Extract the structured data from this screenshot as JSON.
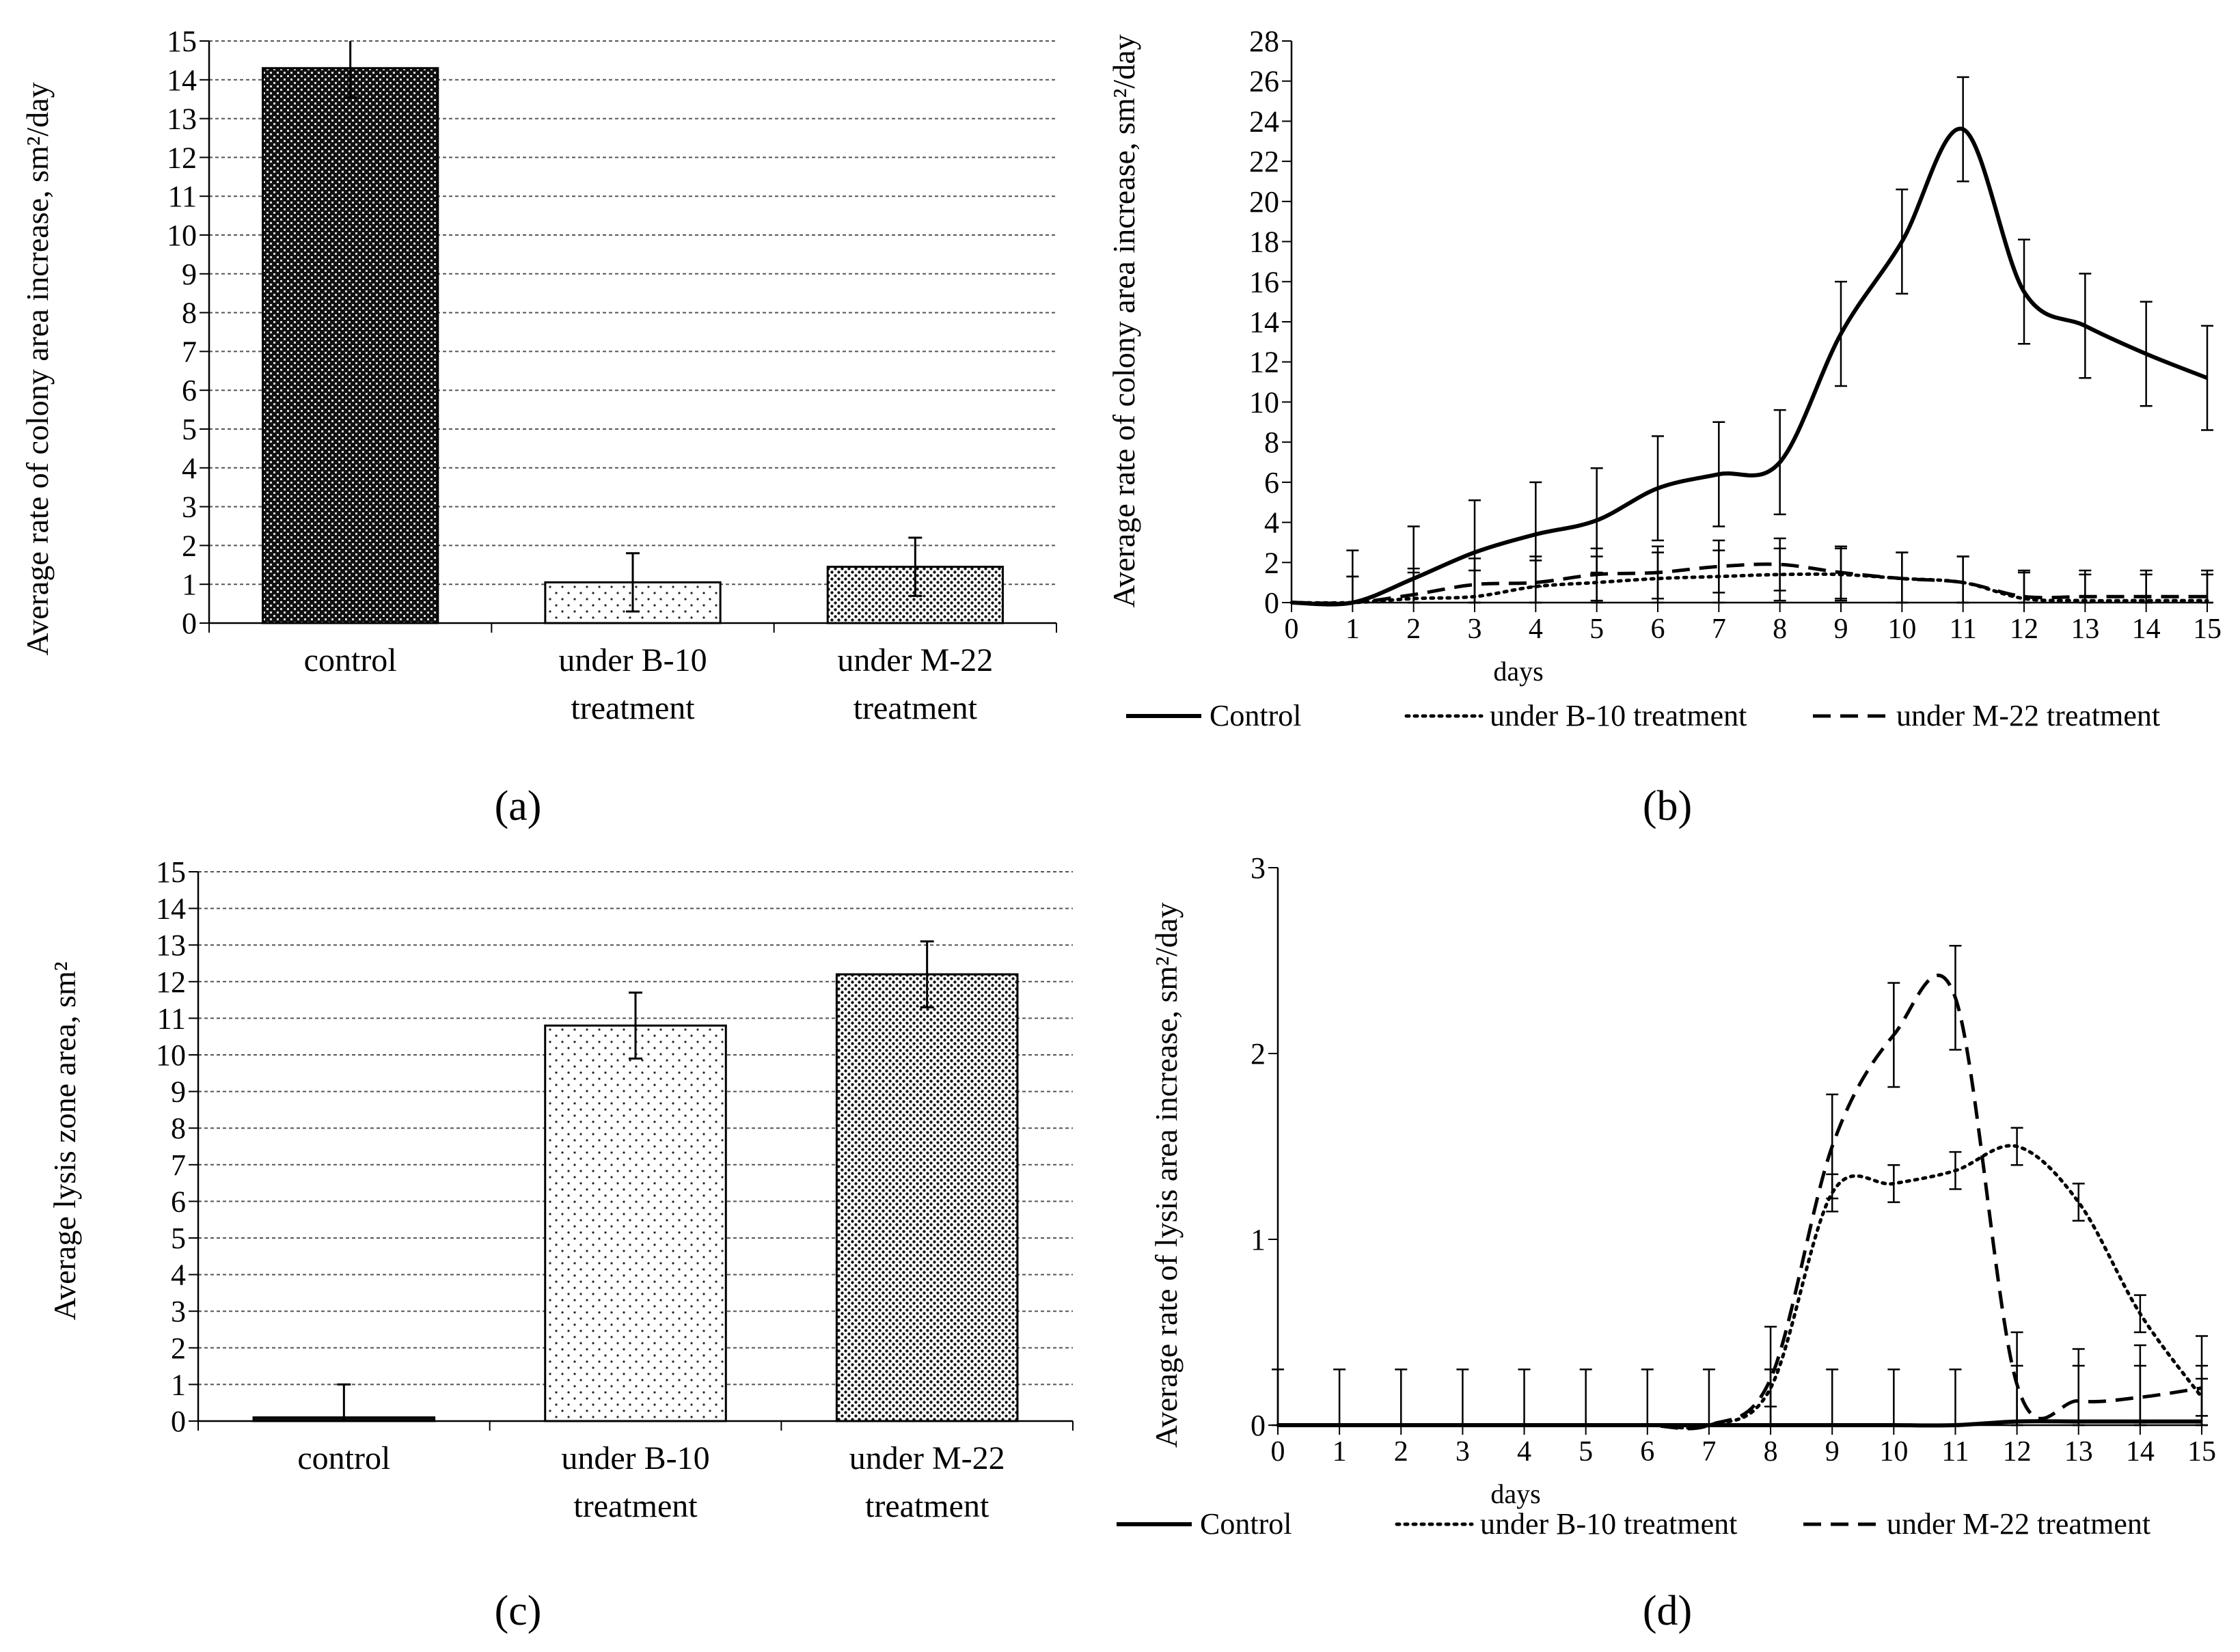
{
  "chart_data": [
    {
      "id": "a",
      "type": "bar",
      "panel_label": "(a)",
      "ylabel": "Average rate of colony area increase, sm²/day",
      "ylim": [
        0,
        15
      ],
      "ytick_step": 1,
      "grid": true,
      "categories": [
        [
          "control"
        ],
        [
          "under B-10",
          "treatment"
        ],
        [
          "under M-22",
          "treatment"
        ]
      ],
      "values": [
        14.3,
        1.05,
        1.45
      ],
      "errors": [
        0.75,
        0.75,
        0.75
      ],
      "patterns": [
        "dense-check",
        "sparse-dots",
        "medium-dots"
      ]
    },
    {
      "id": "b",
      "type": "line",
      "panel_label": "(b)",
      "ylabel": "Average rate of colony area increase, sm²/day",
      "xlabel": "days",
      "x": [
        0,
        1,
        2,
        3,
        4,
        5,
        6,
        7,
        8,
        9,
        10,
        11,
        12,
        13,
        14,
        15
      ],
      "ylim": [
        0,
        28
      ],
      "ytick_step": 2,
      "xlim": [
        0,
        15
      ],
      "series": [
        {
          "name": "Control",
          "style": "solid",
          "values": [
            0,
            0,
            1.2,
            2.5,
            3.4,
            4.1,
            5.7,
            6.4,
            7.0,
            13.4,
            18.0,
            23.6,
            15.5,
            13.8,
            12.4,
            11.2
          ],
          "errors": [
            0,
            2.6,
            2.6,
            2.6,
            2.6,
            2.6,
            2.6,
            2.6,
            2.6,
            2.6,
            2.6,
            2.6,
            2.6,
            2.6,
            2.6,
            2.6
          ]
        },
        {
          "name": "under B-10 treatment",
          "style": "dotted",
          "values": [
            0,
            0,
            0.2,
            0.3,
            0.8,
            1.0,
            1.2,
            1.3,
            1.4,
            1.4,
            1.2,
            1.0,
            0.2,
            0.1,
            0.1,
            0.1
          ],
          "errors": [
            0,
            1.3,
            1.3,
            1.3,
            1.3,
            1.3,
            1.3,
            1.3,
            1.3,
            1.3,
            1.3,
            1.3,
            1.3,
            1.3,
            1.3,
            1.3
          ]
        },
        {
          "name": "under M-22 treatment",
          "style": "dashed",
          "values": [
            0,
            0,
            0.4,
            0.9,
            1.0,
            1.4,
            1.5,
            1.8,
            1.9,
            1.5,
            1.2,
            1.0,
            0.3,
            0.3,
            0.3,
            0.3
          ],
          "errors": [
            0,
            1.3,
            1.3,
            1.3,
            1.3,
            1.3,
            1.3,
            1.3,
            1.3,
            1.3,
            1.3,
            1.3,
            1.3,
            1.3,
            1.3,
            1.3
          ]
        }
      ]
    },
    {
      "id": "c",
      "type": "bar",
      "panel_label": "(c)",
      "ylabel": "Average lysis zone area, sm²",
      "ylim": [
        0,
        15
      ],
      "ytick_step": 1,
      "grid": true,
      "categories": [
        [
          "control"
        ],
        [
          "under B-10",
          "treatment"
        ],
        [
          "under M-22",
          "treatment"
        ]
      ],
      "values": [
        0.1,
        10.8,
        12.2
      ],
      "errors": [
        0.9,
        0.9,
        0.9
      ],
      "patterns": [
        "solid",
        "sparse-dots",
        "medium-dots"
      ]
    },
    {
      "id": "d",
      "type": "line",
      "panel_label": "(d)",
      "ylabel": "Average rate of lysis area increase, sm²/day",
      "xlabel": "days",
      "x": [
        0,
        1,
        2,
        3,
        4,
        5,
        6,
        7,
        8,
        9,
        10,
        11,
        12,
        13,
        14,
        15
      ],
      "ylim": [
        0,
        3
      ],
      "ytick_step": 1,
      "xlim": [
        0,
        15
      ],
      "series": [
        {
          "name": "Control",
          "style": "solid",
          "values": [
            0,
            0,
            0,
            0,
            0,
            0,
            0,
            0,
            0,
            0,
            0,
            0,
            0.02,
            0.02,
            0.02,
            0.02
          ],
          "errors": [
            0.3,
            0.3,
            0.3,
            0.3,
            0.3,
            0.3,
            0.3,
            0.3,
            0.3,
            0.3,
            0.3,
            0.3,
            0.3,
            0.3,
            0.3,
            0.3
          ]
        },
        {
          "name": "under B-10 treatment",
          "style": "dotted",
          "values": [
            0,
            0,
            0,
            0,
            0,
            0,
            0,
            0,
            0.2,
            1.25,
            1.3,
            1.37,
            1.5,
            1.2,
            0.6,
            0.15
          ],
          "errors": [
            0,
            0,
            0,
            0,
            0,
            0,
            0,
            0,
            0.1,
            0.1,
            0.1,
            0.1,
            0.1,
            0.1,
            0.1,
            0.1
          ]
        },
        {
          "name": "under M-22 treatment",
          "style": "dashed",
          "values": [
            0,
            0,
            0,
            0,
            0,
            0,
            0,
            0,
            0.25,
            1.5,
            2.1,
            2.3,
            0.22,
            0.13,
            0.15,
            0.2
          ],
          "errors": [
            0,
            0,
            0,
            0,
            0,
            0,
            0,
            0,
            0.28,
            0.28,
            0.28,
            0.28,
            0.28,
            0.28,
            0.28,
            0.28
          ]
        }
      ]
    }
  ]
}
